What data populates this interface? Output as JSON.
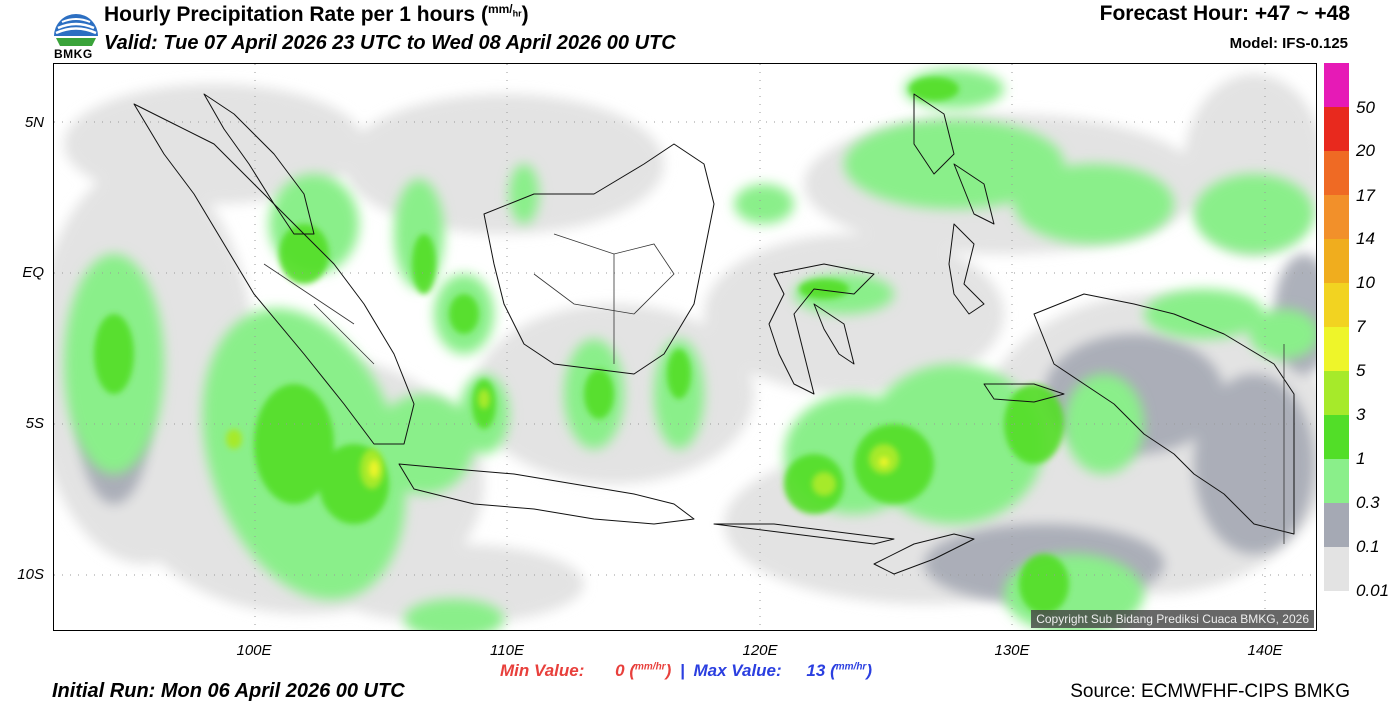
{
  "header": {
    "logo_text": "BMKG",
    "title": "Hourly Precipitation Rate per 1 hours",
    "title_unit_top": "mm",
    "title_unit_bottom": "hr",
    "valid": "Valid: Tue 07 April 2026 23 UTC to Wed 08 April 2026 00 UTC",
    "forecast_hour": "Forecast Hour: +47 ~ +48",
    "model": "Model: IFS-0.125"
  },
  "map": {
    "lat_labels": [
      "5N",
      "EQ",
      "5S",
      "10S"
    ],
    "lon_labels": [
      "100E",
      "110E",
      "120E",
      "130E",
      "140E"
    ],
    "lat_values": [
      5,
      0,
      -5,
      -10
    ],
    "lon_values": [
      100,
      110,
      120,
      130,
      140
    ],
    "lon_range": [
      92,
      142
    ],
    "lat_range": [
      7,
      -12
    ],
    "copyright": "Copyright Sub Bidang Prediksi Cuaca BMKG, 2026"
  },
  "colorbar": {
    "labels": [
      "50",
      "20",
      "17",
      "14",
      "10",
      "7",
      "5",
      "3",
      "1",
      "0.3",
      "0.1",
      "0.01"
    ],
    "colors": [
      "#e61ab6",
      "#e8291e",
      "#ef6a24",
      "#f2902a",
      "#f0ad1e",
      "#f2d321",
      "#eef52a",
      "#a6ea2a",
      "#52de28",
      "#8aef8a",
      "#a5a9b4",
      "#e3e3e3"
    ]
  },
  "stats": {
    "min_label": "Min Value:",
    "min_value": "0",
    "max_label": "Max Value:",
    "max_value": "13",
    "unit_top": "mm",
    "unit_bottom": "hr",
    "separator": "|"
  },
  "footer": {
    "initial_run": "Initial Run: Mon 06 April 2026 00 UTC",
    "source": "Source: ECMWFHF-CIPS BMKG"
  }
}
